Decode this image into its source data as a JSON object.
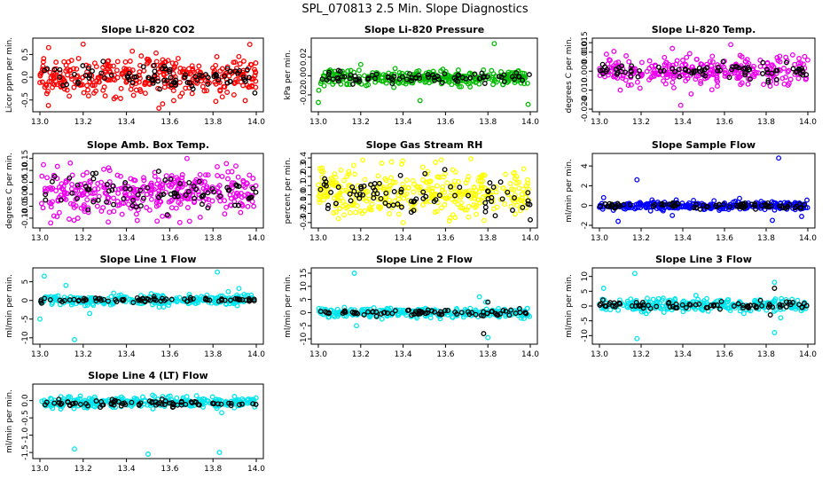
{
  "figure": {
    "title": "SPL_070813  2.5 Min. Slope Diagnostics"
  },
  "chart_data": [
    {
      "type": "scatter",
      "title": "Slope Li-820 CO2",
      "xlabel": "",
      "ylabel": "Licor ppm per min.",
      "xlim": [
        13.0,
        14.0
      ],
      "ylim": [
        -0.7,
        0.8
      ],
      "xticks": [
        "13.0",
        "13.2",
        "13.4",
        "13.6",
        "13.8",
        "14.0"
      ],
      "yticks": [
        {
          "v": -0.5,
          "t": "-0.5"
        },
        {
          "v": 0.0,
          "t": "0.0"
        },
        {
          "v": 0.5,
          "t": "0.5"
        }
      ],
      "series": [
        {
          "color": "#ff0000",
          "n": 360,
          "spread": 0.22,
          "center": 0.0,
          "outliers": [
            [
              13.04,
              0.65
            ],
            [
              13.97,
              0.72
            ],
            [
              13.55,
              -0.68
            ]
          ]
        },
        {
          "color": "#000000",
          "n": 85,
          "spread": 0.16,
          "center": 0.02,
          "outliers": []
        }
      ]
    },
    {
      "type": "scatter",
      "title": "Slope Li-820 Pressure",
      "xlabel": "",
      "ylabel": "kPa per min.",
      "xlim": [
        13.0,
        14.0
      ],
      "ylim": [
        -0.035,
        0.037
      ],
      "xticks": [
        "13.0",
        "13.2",
        "13.4",
        "13.6",
        "13.8",
        "14.0"
      ],
      "yticks": [
        {
          "v": -0.02,
          "t": "-0.02"
        },
        {
          "v": 0.0,
          "t": "0.00"
        },
        {
          "v": 0.02,
          "t": "0.02"
        }
      ],
      "series": [
        {
          "color": "#00bb00",
          "n": 300,
          "spread": 0.004,
          "center": -0.002,
          "outliers": [
            [
              13.2,
              0.012
            ],
            [
              13.83,
              0.034
            ],
            [
              13.99,
              -0.03
            ],
            [
              13.0,
              -0.028
            ],
            [
              13.48,
              -0.026
            ]
          ]
        },
        {
          "color": "#000000",
          "n": 80,
          "spread": 0.003,
          "center": -0.002,
          "outliers": []
        }
      ]
    },
    {
      "type": "scatter",
      "title": "Slope Li-820 Temp.",
      "xlabel": "",
      "ylabel": "degrees C per min.",
      "xlim": [
        13.0,
        14.0
      ],
      "ylim": [
        -0.02,
        0.016
      ],
      "xticks": [
        "13.0",
        "13.2",
        "13.4",
        "13.6",
        "13.8",
        "14.0"
      ],
      "yticks": [
        {
          "v": -0.02,
          "t": "-0.020"
        },
        {
          "v": -0.01,
          "t": "-0.010"
        },
        {
          "v": 0.0,
          "t": "0.000"
        },
        {
          "v": 0.01,
          "t": "0.010"
        },
        {
          "v": 0.015,
          "t": "0.015"
        }
      ],
      "series": [
        {
          "color": "#ee00ee",
          "n": 300,
          "spread": 0.004,
          "center": 0.0,
          "outliers": [
            [
              13.39,
              -0.018
            ],
            [
              13.35,
              0.012
            ],
            [
              13.63,
              0.014
            ],
            [
              13.1,
              -0.01
            ],
            [
              13.44,
              -0.012
            ]
          ]
        },
        {
          "color": "#000000",
          "n": 80,
          "spread": 0.002,
          "center": 0.0,
          "outliers": []
        }
      ]
    },
    {
      "type": "scatter",
      "title": "Slope Amb. Box Temp.",
      "xlabel": "",
      "ylabel": "degrees C per min.",
      "xlim": [
        13.0,
        14.0
      ],
      "ylim": [
        -0.13,
        0.16
      ],
      "xticks": [
        "13.0",
        "13.2",
        "13.4",
        "13.6",
        "13.8",
        "14.0"
      ],
      "yticks": [
        {
          "v": -0.1,
          "t": "-0.10"
        },
        {
          "v": -0.05,
          "t": "-0.05"
        },
        {
          "v": 0.0,
          "t": "0.00"
        },
        {
          "v": 0.05,
          "t": "0.05"
        },
        {
          "v": 0.1,
          "t": "0.10"
        },
        {
          "v": 0.15,
          "t": "0.15"
        }
      ],
      "series": [
        {
          "color": "#ee00ee",
          "n": 360,
          "spread": 0.05,
          "center": 0.01,
          "outliers": [
            [
              13.68,
              0.15
            ],
            [
              13.05,
              -0.12
            ],
            [
              13.45,
              -0.11
            ]
          ]
        },
        {
          "color": "#000000",
          "n": 80,
          "spread": 0.04,
          "center": 0.01,
          "outliers": []
        }
      ]
    },
    {
      "type": "scatter",
      "title": "Slope Gas Stream RH",
      "xlabel": "",
      "ylabel": "percent per min.",
      "xlim": [
        13.0,
        14.0
      ],
      "ylim": [
        -0.33,
        0.42
      ],
      "xticks": [
        "13.0",
        "13.2",
        "13.4",
        "13.6",
        "13.8",
        "14.0"
      ],
      "yticks": [
        {
          "v": -0.3,
          "t": "-0.3"
        },
        {
          "v": -0.2,
          "t": "-0.2"
        },
        {
          "v": -0.1,
          "t": "-0.1"
        },
        {
          "v": 0.0,
          "t": "0.0"
        },
        {
          "v": 0.1,
          "t": "0.1"
        },
        {
          "v": 0.2,
          "t": "0.2"
        },
        {
          "v": 0.3,
          "t": "0.3"
        },
        {
          "v": 0.4,
          "t": "0.4"
        }
      ],
      "series": [
        {
          "color": "#ffff00",
          "n": 360,
          "spread": 0.13,
          "center": 0.03,
          "outliers": [
            [
              13.58,
              0.38
            ],
            [
              13.72,
              0.39
            ],
            [
              13.4,
              -0.3
            ]
          ]
        },
        {
          "color": "#000000",
          "n": 80,
          "spread": 0.1,
          "center": 0.0,
          "outliers": [
            [
              14.0,
              -0.27
            ]
          ]
        }
      ]
    },
    {
      "type": "scatter",
      "title": "Slope Sample Flow",
      "xlabel": "",
      "ylabel": "ml/min per min.",
      "xlim": [
        13.0,
        14.0
      ],
      "ylim": [
        -2.0,
        5.0
      ],
      "xticks": [
        "13.0",
        "13.2",
        "13.4",
        "13.6",
        "13.8",
        "14.0"
      ],
      "yticks": [
        {
          "v": -2,
          "t": "-2"
        },
        {
          "v": 0,
          "t": "0"
        },
        {
          "v": 2,
          "t": "2"
        },
        {
          "v": 4,
          "t": "4"
        }
      ],
      "series": [
        {
          "color": "#0000ff",
          "n": 300,
          "spread": 0.22,
          "center": 0.0,
          "outliers": [
            [
              13.02,
              0.8
            ],
            [
              13.18,
              2.6
            ],
            [
              13.86,
              4.8
            ],
            [
              13.09,
              -1.6
            ],
            [
              13.35,
              -1.0
            ],
            [
              13.97,
              -1.1
            ],
            [
              13.83,
              -1.5
            ]
          ]
        },
        {
          "color": "#000000",
          "n": 80,
          "spread": 0.15,
          "center": 0.0,
          "outliers": []
        }
      ]
    },
    {
      "type": "scatter",
      "title": "Slope Line 1 Flow",
      "xlabel": "",
      "ylabel": "ml/min per min.",
      "xlim": [
        13.0,
        14.0
      ],
      "ylim": [
        -11.0,
        8.0
      ],
      "xticks": [
        "13.0",
        "13.2",
        "13.4",
        "13.6",
        "13.8",
        "14.0"
      ],
      "yticks": [
        {
          "v": -10,
          "t": "-10"
        },
        {
          "v": -5,
          "t": "-5"
        },
        {
          "v": 0,
          "t": "0"
        },
        {
          "v": 5,
          "t": "5"
        }
      ],
      "series": [
        {
          "color": "#00e5ee",
          "n": 300,
          "spread": 0.7,
          "center": 0.1,
          "outliers": [
            [
              13.02,
              6.5
            ],
            [
              13.16,
              -10.5
            ],
            [
              13.12,
              4.0
            ],
            [
              13.82,
              7.6
            ],
            [
              13.23,
              -3.5
            ],
            [
              13.0,
              -5.0
            ],
            [
              13.92,
              3.2
            ]
          ]
        },
        {
          "color": "#000000",
          "n": 80,
          "spread": 0.3,
          "center": 0.2,
          "outliers": []
        }
      ]
    },
    {
      "type": "scatter",
      "title": "Slope Line 2 Flow",
      "xlabel": "",
      "ylabel": "ml/min per min.",
      "xlim": [
        13.0,
        14.0
      ],
      "ylim": [
        -11.0,
        16.0
      ],
      "xticks": [
        "13.0",
        "13.2",
        "13.4",
        "13.6",
        "13.8",
        "14.0"
      ],
      "yticks": [
        {
          "v": -10,
          "t": "-10"
        },
        {
          "v": -5,
          "t": "-5"
        },
        {
          "v": 0,
          "t": "0"
        },
        {
          "v": 5,
          "t": "5"
        },
        {
          "v": 10,
          "t": "10"
        },
        {
          "v": 15,
          "t": "15"
        }
      ],
      "series": [
        {
          "color": "#00e5ee",
          "n": 300,
          "spread": 0.8,
          "center": 0.0,
          "outliers": [
            [
              13.17,
              15.0
            ],
            [
              13.76,
              6.0
            ],
            [
              13.79,
              4.0
            ],
            [
              13.18,
              -5.0
            ],
            [
              13.8,
              -9.5
            ]
          ]
        },
        {
          "color": "#000000",
          "n": 80,
          "spread": 0.5,
          "center": 0.0,
          "outliers": [
            [
              13.8,
              4.0
            ],
            [
              13.78,
              -8.0
            ]
          ]
        }
      ]
    },
    {
      "type": "scatter",
      "title": "Slope Line 3 Flow",
      "xlabel": "",
      "ylabel": "ml/min per min.",
      "xlim": [
        13.0,
        14.0
      ],
      "ylim": [
        -12.0,
        12.0
      ],
      "xticks": [
        "13.0",
        "13.2",
        "13.4",
        "13.6",
        "13.8",
        "14.0"
      ],
      "yticks": [
        {
          "v": -10,
          "t": "-10"
        },
        {
          "v": -5,
          "t": "-5"
        },
        {
          "v": 0,
          "t": "0"
        },
        {
          "v": 5,
          "t": "5"
        },
        {
          "v": 10,
          "t": "10"
        }
      ],
      "series": [
        {
          "color": "#00e5ee",
          "n": 300,
          "spread": 1.0,
          "center": 0.3,
          "outliers": [
            [
              13.02,
              6.0
            ],
            [
              13.17,
              11.0
            ],
            [
              13.18,
              -11.0
            ],
            [
              13.84,
              8.0
            ],
            [
              13.84,
              -9.0
            ],
            [
              13.87,
              -4.0
            ]
          ]
        },
        {
          "color": "#000000",
          "n": 80,
          "spread": 0.6,
          "center": 0.3,
          "outliers": [
            [
              13.82,
              -3.0
            ],
            [
              13.84,
              6.0
            ]
          ]
        }
      ]
    },
    {
      "type": "scatter",
      "title": "Slope Line 4 (LT) Flow",
      "xlabel": "",
      "ylabel": "ml/min per min.",
      "xlim": [
        13.0,
        14.0
      ],
      "ylim": [
        -1.6,
        0.4
      ],
      "xticks": [
        "13.0",
        "13.2",
        "13.4",
        "13.6",
        "13.8",
        "14.0"
      ],
      "yticks": [
        {
          "v": -1.5,
          "t": "-1.5"
        },
        {
          "v": -1.0,
          "t": "-1.0"
        },
        {
          "v": -0.5,
          "t": "-0.5"
        },
        {
          "v": 0.0,
          "t": "0.0"
        }
      ],
      "series": [
        {
          "color": "#00e5ee",
          "n": 320,
          "spread": 0.07,
          "center": -0.05,
          "outliers": [
            [
              13.16,
              -1.4
            ],
            [
              13.5,
              -1.55
            ],
            [
              13.83,
              -1.5
            ],
            [
              13.84,
              -0.35
            ],
            [
              13.14,
              0.1
            ]
          ]
        },
        {
          "color": "#000000",
          "n": 80,
          "spread": 0.05,
          "center": -0.08,
          "outliers": []
        }
      ]
    }
  ]
}
